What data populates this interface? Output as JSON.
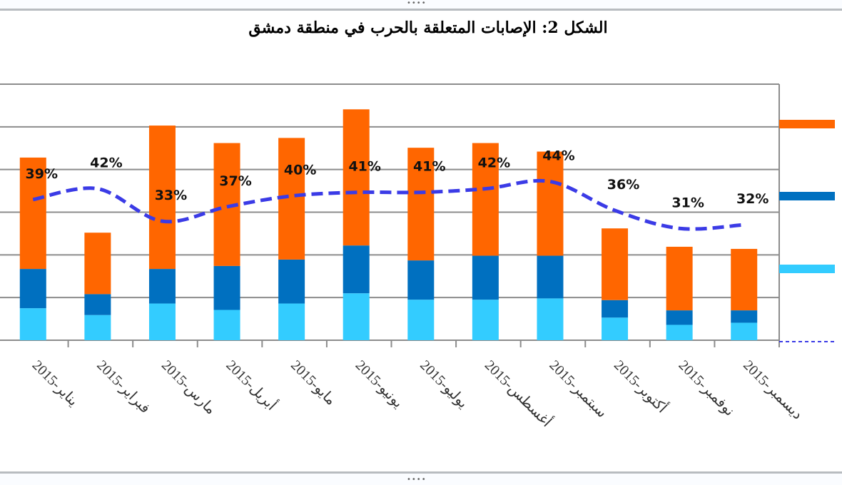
{
  "chart_data": {
    "type": "bar",
    "stacked": true,
    "title": "الشكل 2: الإصابات المتعلقة بالحرب في منطقة دمشق",
    "categories": [
      "2015-يناير",
      "2015-فبراير",
      "2015-مارس",
      "2015-أبريل",
      "2015-مايو",
      "2015-يونيو",
      "2015-يوليو",
      "2015-أغسطس",
      "2015-سبتمبر",
      "2015-أكتوبر",
      "2015-نوفمبر",
      "2015-ديسمبر"
    ],
    "ylim": [
      0,
      600
    ],
    "grid": true,
    "legend_position": "right",
    "series": [
      {
        "name": "",
        "color": "#33CCFF",
        "values": [
          75,
          59,
          86,
          71,
          86,
          110,
          95,
          95,
          98,
          53,
          36,
          41
        ]
      },
      {
        "name": "",
        "color": "#0070C0",
        "values": [
          92,
          49,
          81,
          103,
          103,
          112,
          92,
          103,
          100,
          41,
          34,
          29
        ]
      },
      {
        "name": "",
        "color": "#FF6600",
        "values": [
          261,
          144,
          336,
          288,
          285,
          319,
          264,
          264,
          244,
          168,
          149,
          144
        ]
      }
    ],
    "line_series": {
      "name": "",
      "color": "#3B3BE6",
      "axis": "secondary",
      "ylim": [
        0,
        71
      ],
      "values": [
        39,
        42,
        33,
        37,
        40,
        41,
        41,
        42,
        44,
        36,
        31,
        32
      ],
      "labels": [
        "39%",
        "42%",
        "33%",
        "37%",
        "40%",
        "41%",
        "41%",
        "42%",
        "44%",
        "36%",
        "31%",
        "32%"
      ]
    }
  },
  "frame": {
    "handle": "••••"
  }
}
